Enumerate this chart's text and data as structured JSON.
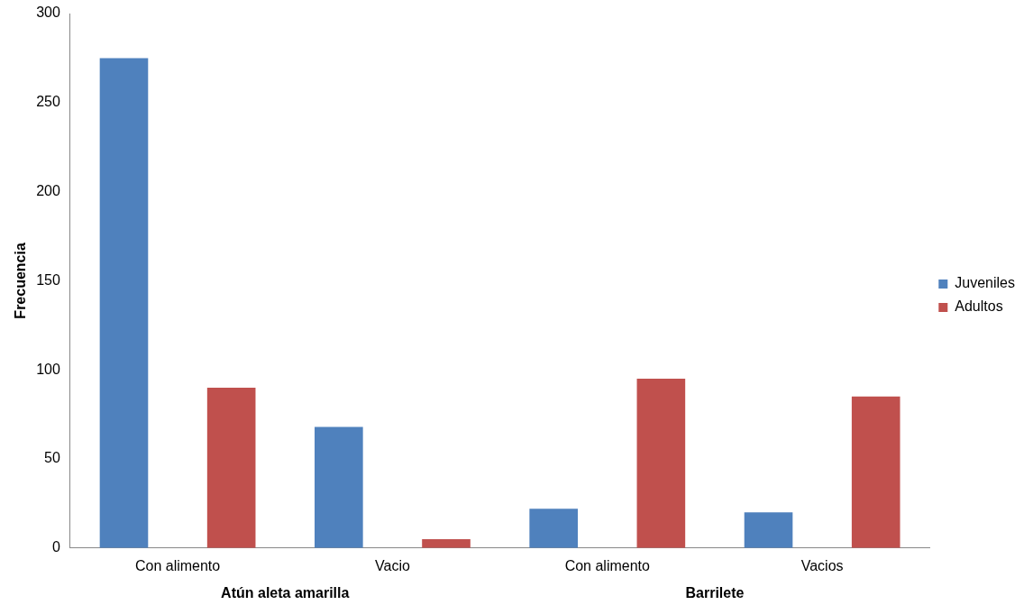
{
  "chart_data": {
    "type": "bar",
    "ylabel": "Frecuencia",
    "categories": [
      "Con alimento",
      "Vacio",
      "Con alimento",
      "Vacios"
    ],
    "series": [
      {
        "name": "Juveniles",
        "color": "#4f81bd",
        "values": [
          275,
          68,
          22,
          20
        ]
      },
      {
        "name": "Adultos",
        "color": "#c0504d",
        "values": [
          90,
          5,
          95,
          85
        ]
      }
    ],
    "ylim": [
      0,
      300
    ],
    "yticks": [
      0,
      50,
      100,
      150,
      200,
      250,
      300
    ],
    "legend": "right",
    "grid": false,
    "annotations": [
      "Atún aleta amarilla",
      "Barrilete"
    ]
  }
}
